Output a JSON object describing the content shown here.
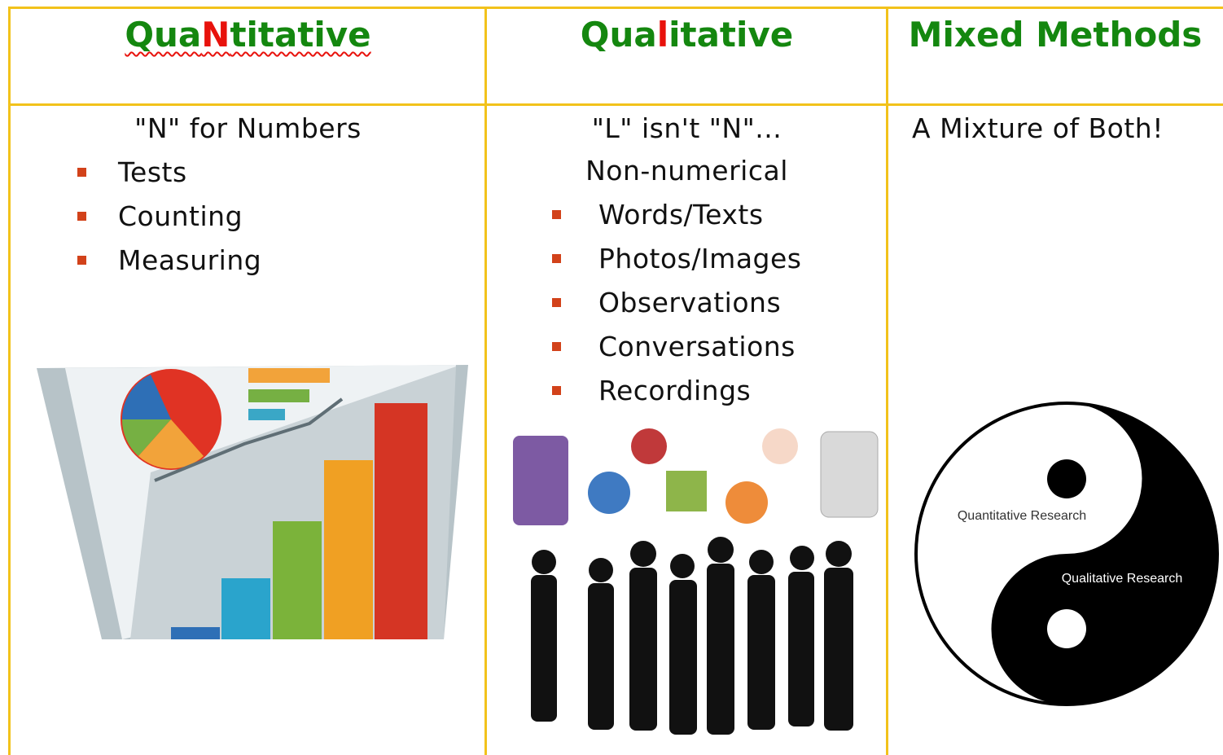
{
  "title_color": "#14870f",
  "columns": [
    {
      "title_parts": [
        {
          "text": "Qua"
        },
        {
          "text": "N",
          "color": "#e8120c"
        },
        {
          "text": "titative"
        }
      ],
      "intro": [
        "\"N\" for Numbers"
      ],
      "items": [
        "Tests",
        "Counting",
        "Measuring"
      ]
    },
    {
      "title_parts": [
        {
          "text": "Qua"
        },
        {
          "text": "l",
          "color": "#e8120c"
        },
        {
          "text": "itative"
        }
      ],
      "intro": [
        "\"L\" isn't \"N\"...",
        "Non-numerical"
      ],
      "items": [
        "Words/Texts",
        "Photos/Images",
        "Observations",
        "Conversations",
        "Recordings"
      ]
    },
    {
      "title_parts": [
        {
          "text": "Mixed Methods"
        }
      ],
      "intro": [
        "A Mixture of Both!"
      ]
    }
  ],
  "image_labels": [
    "Quantitative Research",
    "Qualitative Research"
  ]
}
